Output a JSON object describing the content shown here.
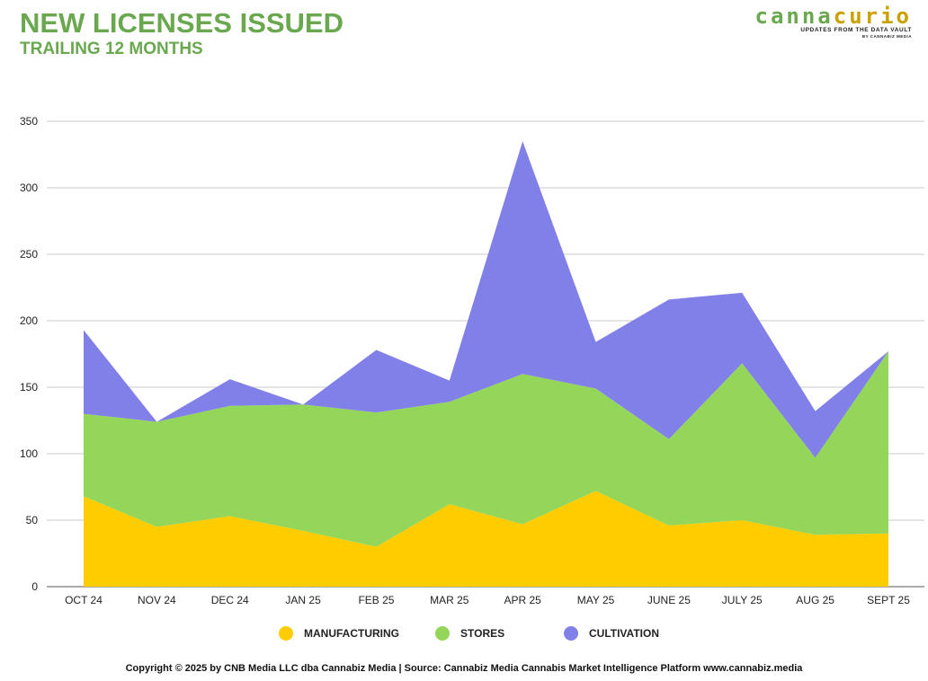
{
  "header": {
    "title": "NEW LICENSES ISSUED",
    "subtitle": "TRAILING 12 MONTHS"
  },
  "logo": {
    "word_part1": "canna",
    "word_part2": "curio",
    "tagline": "UPDATES FROM THE DATA VAULT",
    "byline": "BY CANNABIZ MEDIA"
  },
  "footer": {
    "text": "Copyright © 2025 by CNB Media LLC dba Cannabiz Media | Source: Cannabiz Media Cannabis Market Intelligence Platform www.cannabiz.media"
  },
  "chart_data": {
    "type": "area",
    "stacked": true,
    "title": "NEW LICENSES ISSUED",
    "subtitle": "TRAILING 12 MONTHS",
    "xlabel": "",
    "ylabel": "",
    "ylim": [
      0,
      350
    ],
    "yticks": [
      0,
      50,
      100,
      150,
      200,
      250,
      300,
      350
    ],
    "grid": true,
    "legend_position": "bottom",
    "categories": [
      "OCT 24",
      "NOV 24",
      "DEC 24",
      "JAN 25",
      "FEB 25",
      "MAR 25",
      "APR 25",
      "MAY 25",
      "JUNE 25",
      "JULY 25",
      "AUG 25",
      "SEPT 25"
    ],
    "series": [
      {
        "name": "MANUFACTURING",
        "color": "#ffcc00",
        "values": [
          68,
          45,
          53,
          42,
          30,
          62,
          47,
          72,
          46,
          50,
          39,
          40
        ]
      },
      {
        "name": "STORES",
        "color": "#93d65a",
        "values": [
          62,
          79,
          83,
          95,
          101,
          77,
          113,
          77,
          65,
          118,
          58,
          137
        ]
      },
      {
        "name": "CULTIVATION",
        "color": "#8080e8",
        "values": [
          63,
          0,
          20,
          0,
          47,
          16,
          175,
          35,
          105,
          53,
          35,
          0
        ]
      }
    ]
  }
}
